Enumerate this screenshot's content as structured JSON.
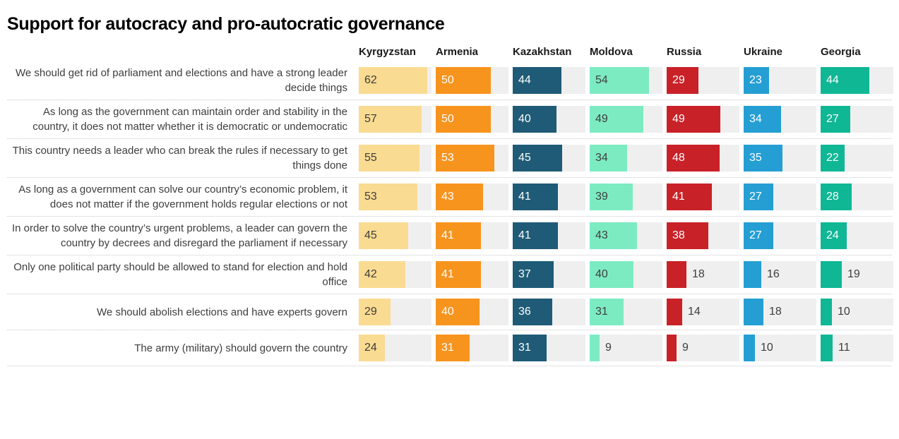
{
  "chart_data": {
    "type": "bar",
    "orientation": "horizontal",
    "title": "Support for autocracy and pro-autocratic governance",
    "categories": [
      "We should get rid of parliament and elections and have a strong leader decide things",
      "As long as the government can maintain order and stability in the country, it does not matter whether it is democratic or undemocratic",
      "This country needs a leader who can break the rules if necessary to get things done",
      "As long as a government can solve our country’s economic problem, it does not matter if the government holds regular elections or not",
      "In order to solve the country’s urgent problems, a leader can govern the country by decrees and disregard the parliament if necessary",
      "Only one political party should be allowed to stand for election and hold office",
      "We should abolish elections and have experts govern",
      "The army (military) should govern the country"
    ],
    "series": [
      {
        "name": "Kyrgyzstan",
        "color": "#FADB92",
        "value_text_color": "#3d3d3d",
        "values": [
          62,
          57,
          55,
          53,
          45,
          42,
          29,
          24
        ]
      },
      {
        "name": "Armenia",
        "color": "#F7941E",
        "value_text_color": "#ffffff",
        "values": [
          50,
          50,
          53,
          43,
          41,
          41,
          40,
          31
        ]
      },
      {
        "name": "Kazakhstan",
        "color": "#1F5B76",
        "value_text_color": "#ffffff",
        "values": [
          44,
          40,
          45,
          41,
          41,
          37,
          36,
          31
        ]
      },
      {
        "name": "Moldova",
        "color": "#7DEBC2",
        "value_text_color": "#3d3d3d",
        "values": [
          54,
          49,
          34,
          39,
          43,
          40,
          31,
          9
        ]
      },
      {
        "name": "Russia",
        "color": "#C92128",
        "value_text_color": "#ffffff",
        "values": [
          29,
          49,
          48,
          41,
          38,
          18,
          14,
          9
        ]
      },
      {
        "name": "Ukraine",
        "color": "#259FD3",
        "value_text_color": "#ffffff",
        "values": [
          23,
          34,
          35,
          27,
          27,
          16,
          18,
          10
        ]
      },
      {
        "name": "Georgia",
        "color": "#0FB795",
        "value_text_color": "#ffffff",
        "values": [
          44,
          27,
          22,
          28,
          24,
          19,
          10,
          11
        ]
      }
    ],
    "xlim": [
      0,
      66
    ],
    "inside_label_min": 20,
    "track_color": "#EFEFEF",
    "outside_label_color": "#3d3d3d",
    "grid": false,
    "legend_position": "column-headers-top"
  }
}
